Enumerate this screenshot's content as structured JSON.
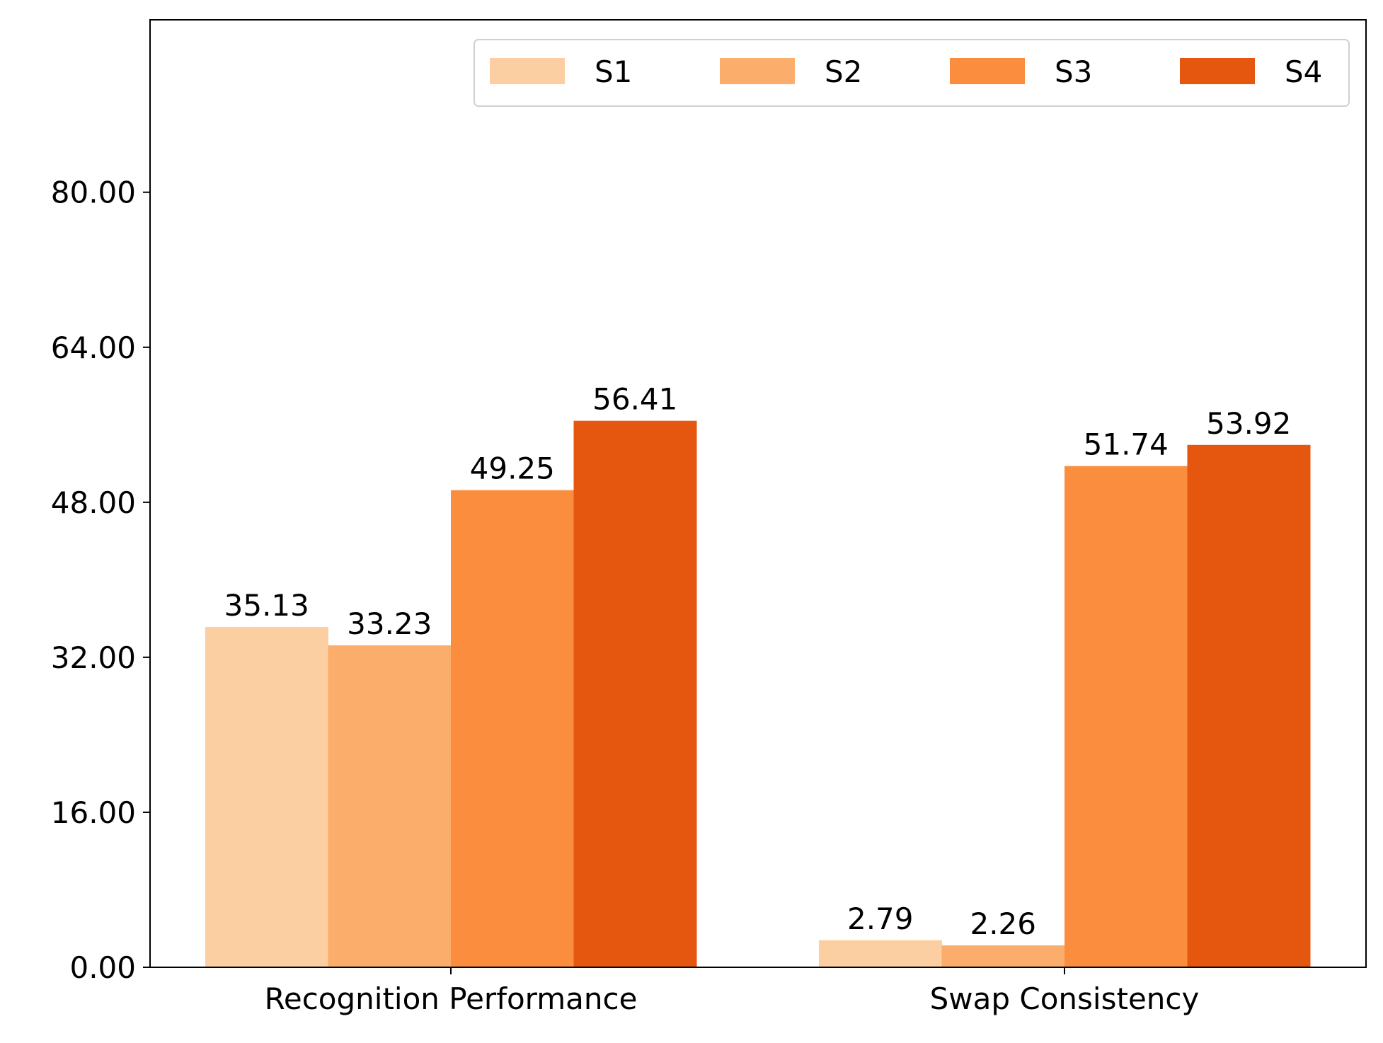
{
  "chart_data": {
    "type": "bar",
    "title": "",
    "xlabel": "",
    "ylabel": "",
    "categories": [
      "Recognition Performance",
      "Swap Consistency"
    ],
    "series": [
      {
        "name": "S1",
        "values": [
          35.13,
          2.79
        ],
        "color": "#fbcfa1"
      },
      {
        "name": "S2",
        "values": [
          33.23,
          2.26
        ],
        "color": "#fbae6b"
      },
      {
        "name": "S3",
        "values": [
          49.25,
          51.74
        ],
        "color": "#fb8d3e"
      },
      {
        "name": "S4",
        "values": [
          56.41,
          53.92
        ],
        "color": "#e5560f"
      }
    ],
    "value_labels": [
      [
        "35.13",
        "2.79"
      ],
      [
        "33.23",
        "2.26"
      ],
      [
        "49.25",
        "51.74"
      ],
      [
        "56.41",
        "53.92"
      ]
    ],
    "yticks": [
      0,
      16,
      32,
      48,
      64,
      80
    ],
    "ytick_labels": [
      "0.00",
      "16.00",
      "32.00",
      "48.00",
      "64.00",
      "80.00"
    ],
    "ylim": [
      0,
      97.8
    ],
    "grid": false,
    "legend_position": "top-right",
    "legend_columns": 4
  }
}
